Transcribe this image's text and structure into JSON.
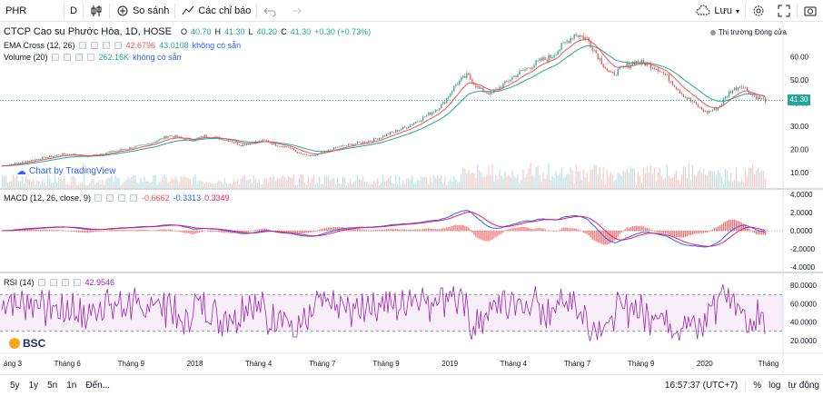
{
  "toolbar": {
    "symbol": "PHR",
    "interval": "D",
    "compare": "So sánh",
    "indicators": "Các chỉ báo",
    "save": "Lưu"
  },
  "legend": {
    "title": "CTCP Cao su Phước Hòa, 1D, HOSE",
    "o_label": "O",
    "o_val": "40.70",
    "h_label": "H",
    "h_val": "41.30",
    "l_label": "L",
    "l_val": "40.20",
    "c_label": "C",
    "c_val": "41.30",
    "change": "+0.30 (+0.73%)",
    "ema_name": "EMA Cross (12, 26)",
    "ema_v1": "42.6796",
    "ema_v2": "43.0108",
    "ema_na": "không có sẵn",
    "vol_name": "Volume (20)",
    "vol_v": "262.16K",
    "vol_na": "không có sẵn",
    "macd_name": "MACD (12, 26, close, 9)",
    "macd_v1": "-0.6662",
    "macd_v2": "-0.3313",
    "macd_v3": "0.3349",
    "rsi_name": "RSI (14)",
    "rsi_v": "42.9546",
    "market_status": "Thị trường Đóng cửa",
    "watermark": "Chart by TradingView",
    "logo": "BSC",
    "last_price": "41.30"
  },
  "axes": {
    "price_ticks": [
      "60.00",
      "50.00",
      "40.00",
      "30.00",
      "20.00",
      "10.00"
    ],
    "macd_ticks": [
      "4.0000",
      "2.0000",
      "0.0000",
      "-2.0000",
      "-4.0000"
    ],
    "rsi_ticks": [
      "80.0000",
      "60.0000",
      "40.0000",
      "20.0000"
    ],
    "time_ticks": [
      "áng 3",
      "Tháng 6",
      "Tháng 9",
      "2018",
      "Tháng 4",
      "Tháng 7",
      "Tháng 9",
      "2019",
      "Tháng 4",
      "Tháng 7",
      "Tháng 9",
      "2020",
      "Tháng"
    ]
  },
  "bottom": {
    "ranges": [
      "5y",
      "1y",
      "5n",
      "1n"
    ],
    "goto": "Đến...",
    "time": "16:57:37 (UTC+7)",
    "pct": "%",
    "log": "log",
    "auto": "tự động"
  },
  "colors": {
    "up": "#26a69a",
    "down": "#ef5350",
    "ema_fast": "#ef5350",
    "ema_slow": "#26a69a",
    "rsi": "#9c27b0",
    "macd": "#2962ff",
    "signal": "#e91e63"
  },
  "chart_data": {
    "type": "candlestick",
    "close_approx": [
      13,
      14,
      15,
      16,
      17,
      18,
      18,
      17,
      18,
      19,
      20,
      21,
      22,
      24,
      26,
      25,
      24,
      26,
      25,
      24,
      22,
      23,
      24,
      22,
      21,
      18,
      17,
      19,
      21,
      22,
      23,
      24,
      26,
      28,
      30,
      33,
      36,
      40,
      48,
      52,
      46,
      44,
      48,
      52,
      55,
      58,
      60,
      65,
      70,
      68,
      60,
      52,
      55,
      58,
      57,
      55,
      50,
      44,
      40,
      36,
      38,
      45,
      48,
      43,
      41.3
    ],
    "price_range": [
      5,
      72
    ],
    "macd_range": [
      -4,
      4
    ],
    "rsi_range": [
      10,
      90
    ],
    "rsi_bands": [
      30,
      70
    ]
  }
}
